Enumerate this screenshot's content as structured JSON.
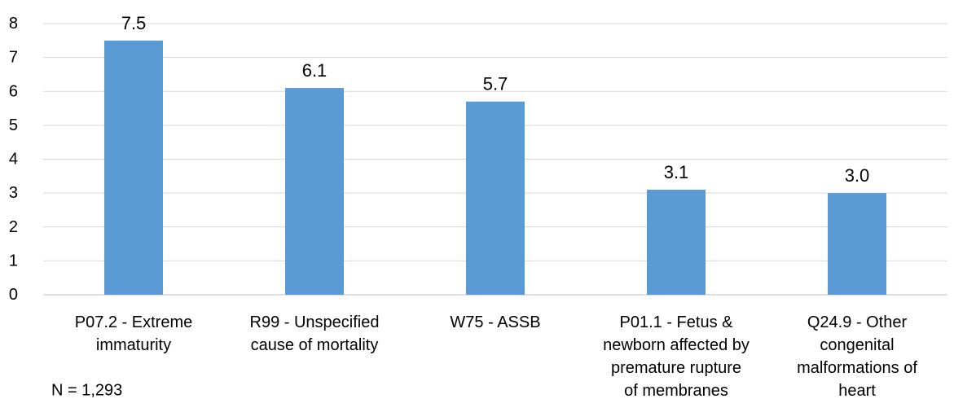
{
  "chart_data": {
    "type": "bar",
    "categories": [
      [
        "P07.2 - Extreme",
        "immaturity"
      ],
      [
        "R99 - Unspecified",
        "cause of mortality"
      ],
      [
        "W75  - ASSB"
      ],
      [
        "P01.1 - Fetus &",
        "newborn affected by",
        "premature rupture",
        "of membranes"
      ],
      [
        "Q24.9 - Other",
        "congenital",
        "malformations of",
        "heart"
      ]
    ],
    "values": [
      7.5,
      6.1,
      5.7,
      3.1,
      3.0
    ],
    "data_labels": [
      "7.5",
      "6.1",
      "5.7",
      "3.1",
      "3.0"
    ],
    "ylim": [
      0,
      8
    ],
    "yticks": [
      0,
      1,
      2,
      3,
      4,
      5,
      6,
      7,
      8
    ],
    "grid": true,
    "bar_color": "#5b9bd5",
    "grid_color": "#d9d9d9",
    "title": "",
    "xlabel": "",
    "ylabel": ""
  },
  "note": "N = 1,293"
}
